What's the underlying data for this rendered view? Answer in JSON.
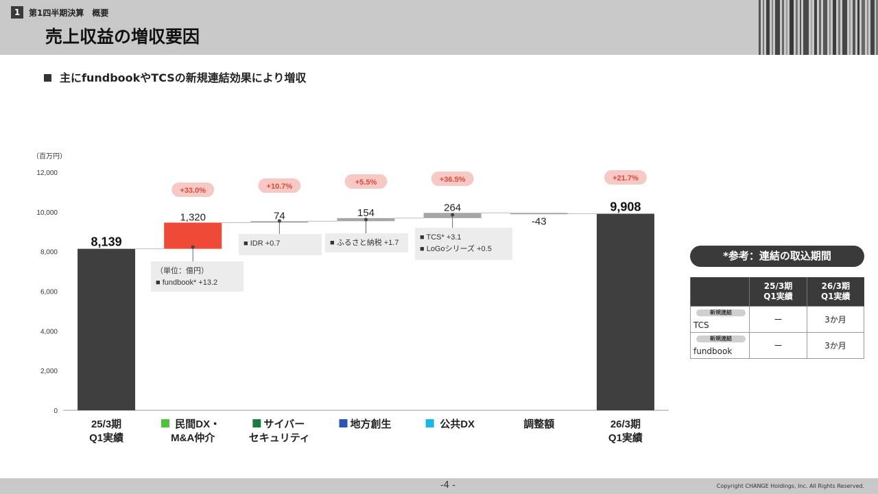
{
  "header": {
    "section_number": "1",
    "section_label": "第1四半期決算　概要",
    "title": "売上収益の増収要因"
  },
  "subtitle": "主にfundbookやTCSの新規連結効果により増収",
  "chart_data": {
    "type": "waterfall",
    "unit_label": "（百万円）",
    "ylim": [
      0,
      12000
    ],
    "yticks": [
      0,
      2000,
      4000,
      6000,
      8000,
      10000,
      12000
    ],
    "ytick_labels": [
      "0",
      "2,000",
      "4,000",
      "6,000",
      "8,000",
      "10,000",
      "12,000"
    ],
    "bars": [
      {
        "label": "25/3期\nQ1実績",
        "kind": "total",
        "value": 8139,
        "value_label": "8,139",
        "pct": "",
        "color": "#3f3f3f"
      },
      {
        "label": "民間DX・\nM&A仲介",
        "kind": "delta",
        "value": 1320,
        "value_label": "1,320",
        "pct": "+33.0%",
        "color": "#ef4a37",
        "legend_color": "#4fc23a",
        "note": [
          "（単位：億円）",
          "■ fundbook* +13.2"
        ]
      },
      {
        "label": "サイバー\nセキュリティ",
        "kind": "delta",
        "value": 74,
        "value_label": "74",
        "pct": "+10.7%",
        "color": "#a6a6a6",
        "legend_color": "#1d7a3e",
        "note": [
          "■ IDR +0.7"
        ]
      },
      {
        "label": "地方創生",
        "kind": "delta",
        "value": 154,
        "value_label": "154",
        "pct": "+5.5%",
        "color": "#a6a6a6",
        "legend_color": "#2a55b8",
        "note": [
          "■ ふるさと納税 +1.7"
        ]
      },
      {
        "label": "公共DX",
        "kind": "delta",
        "value": 264,
        "value_label": "264",
        "pct": "+36.5%",
        "color": "#a6a6a6",
        "legend_color": "#1ab6e6",
        "note": [
          "■ TCS* +3.1",
          "■ LoGoシリーズ +0.5"
        ]
      },
      {
        "label": "調整額",
        "kind": "delta",
        "value": -43,
        "value_label": "-43",
        "pct": "",
        "color": "#a6a6a6"
      },
      {
        "label": "26/3期\nQ1実績",
        "kind": "total",
        "value": 9908,
        "value_label": "9,908",
        "pct": "+21.7%",
        "color": "#3f3f3f"
      }
    ]
  },
  "reference": {
    "title": "*参考：連結の取込期間",
    "columns": [
      "",
      "25/3期\nQ1実績",
      "26/3期\nQ1実績"
    ],
    "rows": [
      {
        "tag": "新規連結",
        "name": "TCS",
        "prev": "ー",
        "curr": "3か月"
      },
      {
        "tag": "新規連結",
        "name": "fundbook",
        "prev": "ー",
        "curr": "3か月"
      }
    ]
  },
  "footer": {
    "page": "-4 -",
    "copyright": "Copyright CHANGE Holdings, Inc. All Rights Reserved."
  }
}
